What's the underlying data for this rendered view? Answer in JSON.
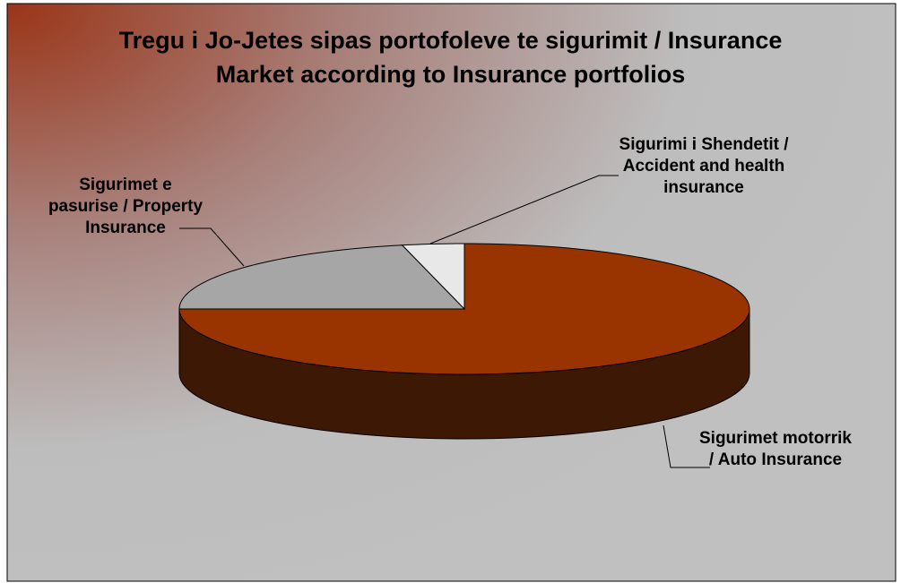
{
  "chart_data": {
    "type": "pie3d",
    "title": "Tregu i Jo-Jetes sipas portofoleve te sigurimit / Insurance Market according to Insurance portfolios",
    "categories": [
      "Sigurimet motorrik / Auto Insurance",
      "Sigurimet e pasurise / Property Insurance",
      "Sigurimi i Shendetit / Accident and health insurance"
    ],
    "values": [
      75,
      21.5,
      3.5
    ],
    "colors": [
      "#993300",
      "#a6a6a6",
      "#e8e8e8"
    ]
  }
}
